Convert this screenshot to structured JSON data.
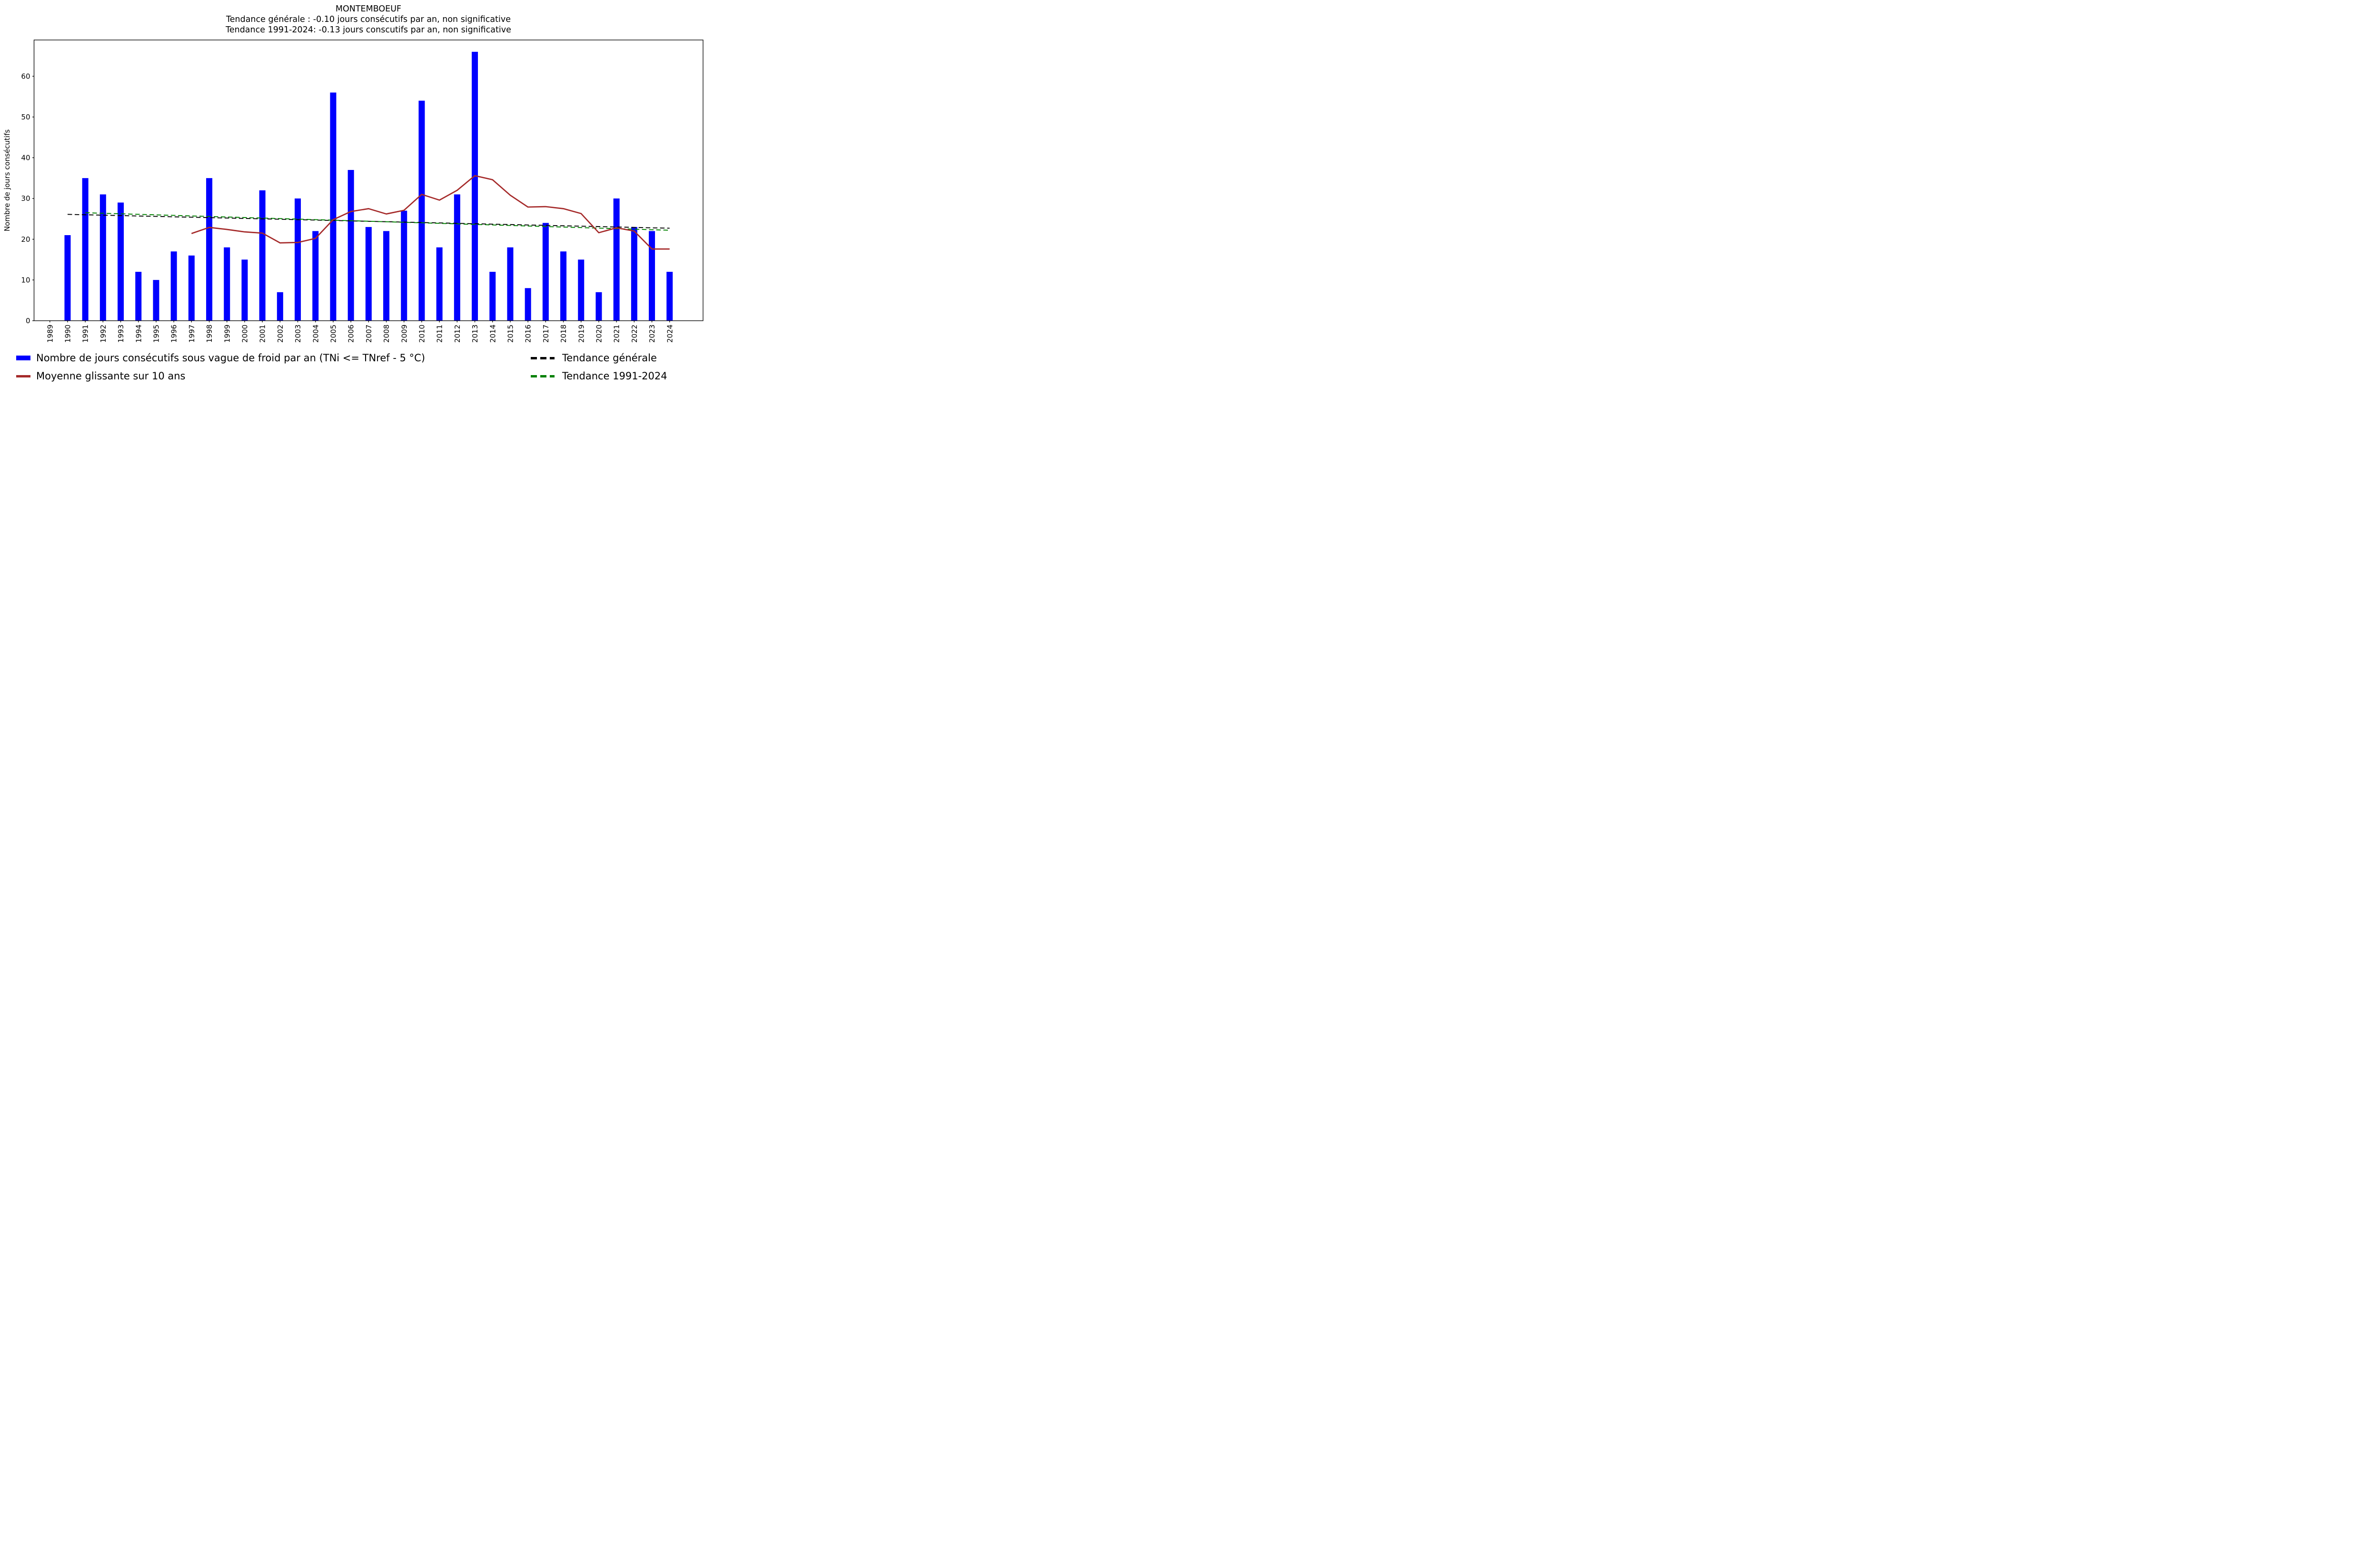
{
  "figure": {
    "title": "MONTEMBOEUF",
    "subtitle_line1": "Tendance générale : -0.10 jours consécutifs par an, non significative",
    "subtitle_line2": "Tendance 1991-2024: -0.13 jours conscutifs par an, non significative",
    "ylabel": "Nombre de jours consécutifs",
    "background_color": "#ffffff"
  },
  "chart_data": {
    "type": "bar",
    "title": "MONTEMBOEUF",
    "subtitles": [
      "Tendance générale : -0.10 jours consécutifs par an, non significative",
      "Tendance 1991-2024: -0.13 jours conscutifs par an, non significative"
    ],
    "xlabel": "",
    "ylabel": "Nombre de jours consécutifs",
    "categories": [
      "1989",
      "1990",
      "1991",
      "1992",
      "1993",
      "1994",
      "1995",
      "1996",
      "1997",
      "1998",
      "1999",
      "2000",
      "2001",
      "2002",
      "2003",
      "2004",
      "2005",
      "2006",
      "2007",
      "2008",
      "2009",
      "2010",
      "2011",
      "2012",
      "2013",
      "2014",
      "2015",
      "2016",
      "2017",
      "2018",
      "2019",
      "2020",
      "2021",
      "2022",
      "2023",
      "2024"
    ],
    "bar_series": {
      "name": "Nombre de jours consécutifs sous vague de froid par an (TNi <= TNref - 5 °C)",
      "color": "#0000ff",
      "values": [
        0,
        21,
        35,
        31,
        29,
        12,
        10,
        17,
        16,
        35,
        18,
        15,
        32,
        7,
        30,
        22,
        56,
        37,
        23,
        22,
        27,
        54,
        18,
        31,
        66,
        12,
        18,
        8,
        24,
        17,
        15,
        7,
        30,
        23,
        22,
        12
      ]
    },
    "moving_average_series": {
      "name": "Moyenne glissante sur 10 ans",
      "color": "#a52a2a",
      "years": [
        1997,
        1998,
        1999,
        2000,
        2001,
        2002,
        2003,
        2004,
        2005,
        2006,
        2007,
        2008,
        2009,
        2010,
        2011,
        2012,
        2013,
        2014,
        2015,
        2016,
        2017,
        2018,
        2019,
        2020,
        2021,
        2022,
        2023,
        2024
      ],
      "values": [
        21.4,
        22.9,
        22.4,
        21.8,
        21.5,
        19.1,
        19.2,
        20.2,
        24.8,
        26.8,
        27.5,
        26.2,
        27.1,
        31.0,
        29.6,
        32.0,
        35.6,
        34.6,
        30.8,
        27.9,
        28.0,
        27.5,
        26.3,
        21.6,
        22.8,
        22.0,
        17.6,
        17.6
      ]
    },
    "trend_general": {
      "name": "Tendance générale",
      "color": "#000000",
      "style": "dashed",
      "slope_per_year": -0.1,
      "start": {
        "year": 1990,
        "value": 26.1
      },
      "end": {
        "year": 2024,
        "value": 22.7
      }
    },
    "trend_1991_2024": {
      "name": "Tendance 1991-2024",
      "color": "#008000",
      "style": "dashed",
      "slope_per_year": -0.13,
      "start": {
        "year": 1991,
        "value": 26.5
      },
      "end": {
        "year": 2024,
        "value": 22.2
      }
    },
    "yticks": [
      0,
      10,
      20,
      30,
      40,
      50,
      60
    ],
    "ylim": [
      0,
      68.9
    ],
    "grid": false,
    "legend_position": "bottom"
  },
  "legend": {
    "items": [
      {
        "label": "Nombre de jours consécutifs sous vague de froid par an (TNi <= TNref - 5 °C)",
        "color": "#0000ff",
        "style": "bar"
      },
      {
        "label": "Moyenne glissante sur 10 ans",
        "color": "#a52a2a",
        "style": "solid-line"
      },
      {
        "label": "Tendance générale",
        "color": "#000000",
        "style": "dashed-line"
      },
      {
        "label": "Tendance 1991-2024",
        "color": "#008000",
        "style": "dashed-line"
      }
    ]
  }
}
